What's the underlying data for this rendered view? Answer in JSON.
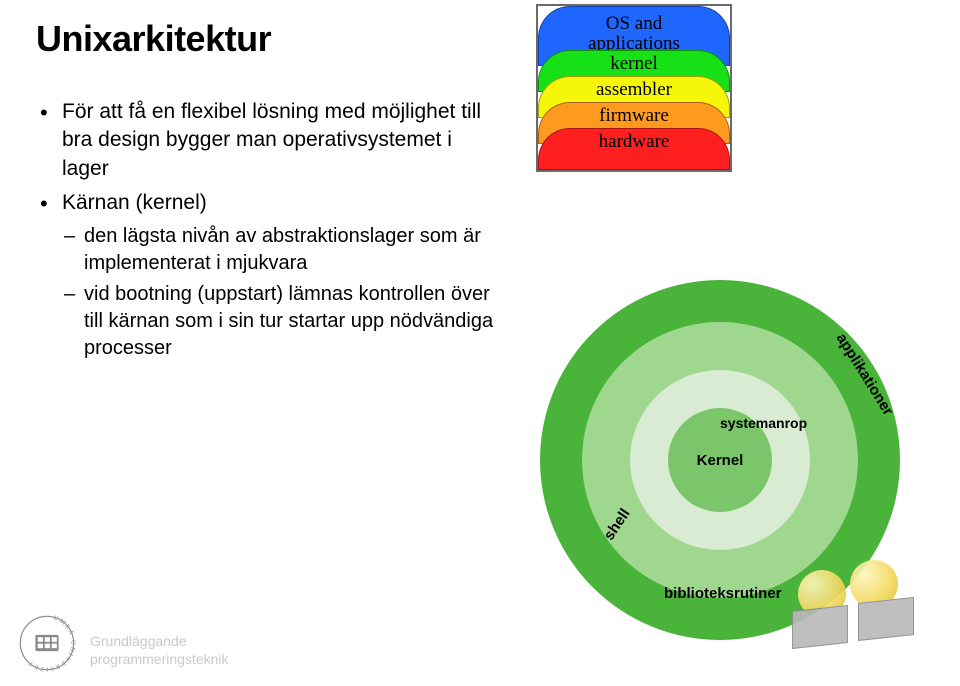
{
  "title": "Unixarkitektur",
  "bullets": {
    "b1": "För att få en flexibel lösning med möjlighet till bra design bygger man operativsystemet i lager",
    "b2": "Kärnan (kernel)",
    "b2a": "den lägsta nivån av abstraktionslager som är implementerat i mjukvara",
    "b2b": "vid bootning (uppstart) lämnas kontrollen över till kärnan som i sin tur startar upp nödvändiga processer"
  },
  "stack": {
    "layers": [
      {
        "label": "OS and\napplications",
        "color": "#1f66ff"
      },
      {
        "label": "kernel",
        "color": "#16e016"
      },
      {
        "label": "assembler",
        "color": "#f6f60b"
      },
      {
        "label": "firmware",
        "color": "#ff9a1f"
      },
      {
        "label": "hardware",
        "color": "#ff1f1f"
      }
    ],
    "label_fontsize": 19,
    "border_color": "#6a6a6a"
  },
  "rings": {
    "outer_color": "#49b33a",
    "shell_color": "#9fd78f",
    "sys_color": "#d9ecd3",
    "kernel_color": "#7bc66a",
    "labels": {
      "kernel": "Kernel",
      "systemanrop": "systemanrop",
      "shell": "shell",
      "applikationer": "applikationer",
      "biblioteksrutiner": "biblioteksrutiner"
    }
  },
  "footer": {
    "line1": "Grundläggande",
    "line2": "programmeringsteknik",
    "text_color": "#c9c9c9",
    "logo_ring_text": "UMEÅ UNIVERSITET"
  }
}
